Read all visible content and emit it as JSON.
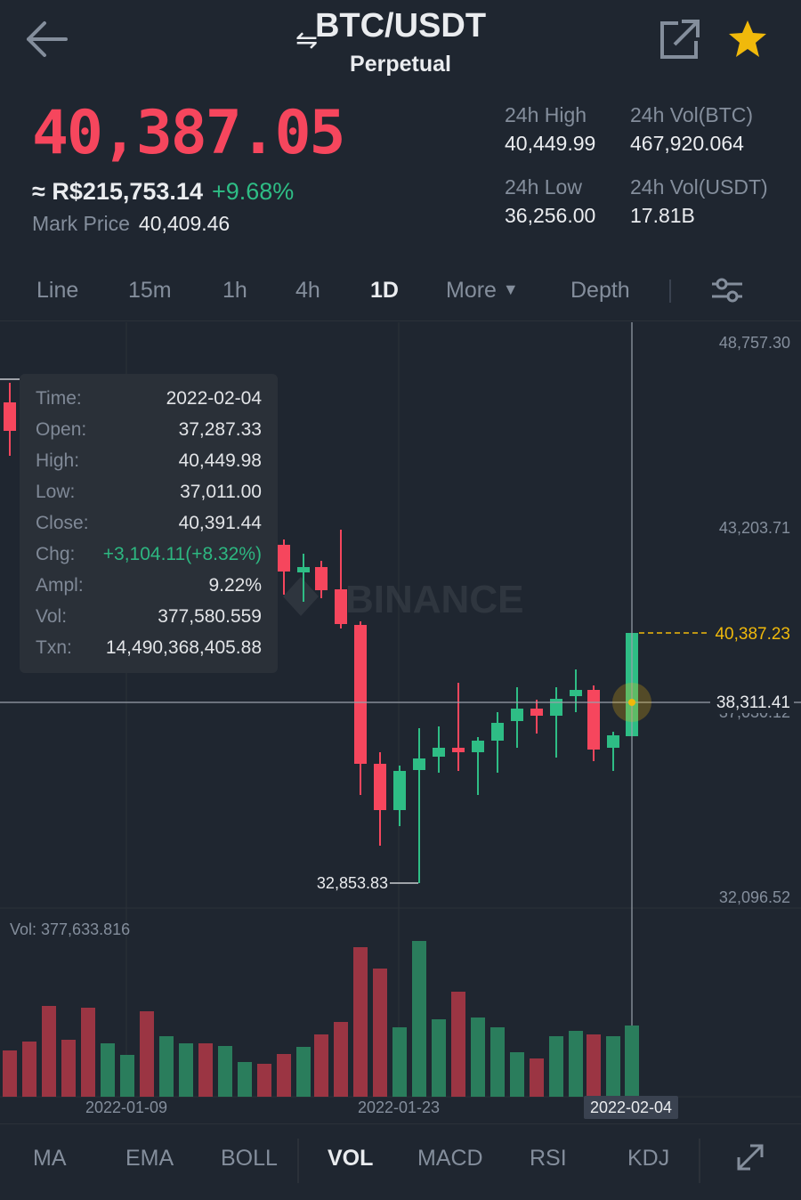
{
  "header": {
    "pair": "BTC/USDT",
    "contract_type": "Perpetual",
    "back_icon": "arrow-left-icon",
    "swap_icon": "swap-arrows-icon",
    "share_icon": "external-link-icon",
    "favorite_icon": "star-icon",
    "favorite_color": "#f0b90b"
  },
  "ticker": {
    "last_price": "40,387.05",
    "fiat_price": "≈ R$215,753.14",
    "change_pct": "+9.68%",
    "mark_label": "Mark Price",
    "mark_price": "40,409.46",
    "high_label": "24h High",
    "high_value": "40,449.99",
    "vol_btc_label": "24h Vol(BTC)",
    "vol_btc_value": "467,920.064",
    "low_label": "24h Low",
    "low_value": "36,256.00",
    "vol_usdt_label": "24h Vol(USDT)",
    "vol_usdt_value": "17.81B"
  },
  "intervals": {
    "tabs": [
      "Line",
      "15m",
      "1h",
      "4h",
      "1D",
      "More",
      "Depth"
    ],
    "active": "1D",
    "settings_icon": "sliders-icon"
  },
  "chart": {
    "price_labels": {
      "top": "48,757.30",
      "mid": "43,203.71",
      "bottom": "32,096.52",
      "current": "40,387.23",
      "crosshair": "38,311.41",
      "hidden_behind": "37,030.12",
      "min_marker": "32,853.83"
    },
    "vol_header": "Vol: 377,633.816",
    "watermark": "BINANCE",
    "dates": [
      "2022-01-09",
      "2022-01-23",
      "2022-02-04"
    ],
    "colors": {
      "up": "#2ebd85",
      "down": "#f6465d",
      "current": "#f0b90b"
    }
  },
  "tooltip": {
    "rows": [
      {
        "k": "Time:",
        "v": "2022-02-04"
      },
      {
        "k": "Open:",
        "v": "37,287.33"
      },
      {
        "k": "High:",
        "v": "40,449.98"
      },
      {
        "k": "Low:",
        "v": "37,011.00"
      },
      {
        "k": "Close:",
        "v": "40,391.44"
      },
      {
        "k": "Chg:",
        "v": "+3,104.11(+8.32%)"
      },
      {
        "k": "Ampl:",
        "v": "9.22%"
      },
      {
        "k": "Vol:",
        "v": "377,580.559"
      },
      {
        "k": "Txn:",
        "v": "14,490,368,405.88"
      }
    ]
  },
  "indicators": {
    "items": [
      "MA",
      "EMA",
      "BOLL",
      "VOL",
      "MACD",
      "RSI",
      "KDJ"
    ],
    "active": "VOL",
    "expand_icon": "expand-icon"
  }
}
